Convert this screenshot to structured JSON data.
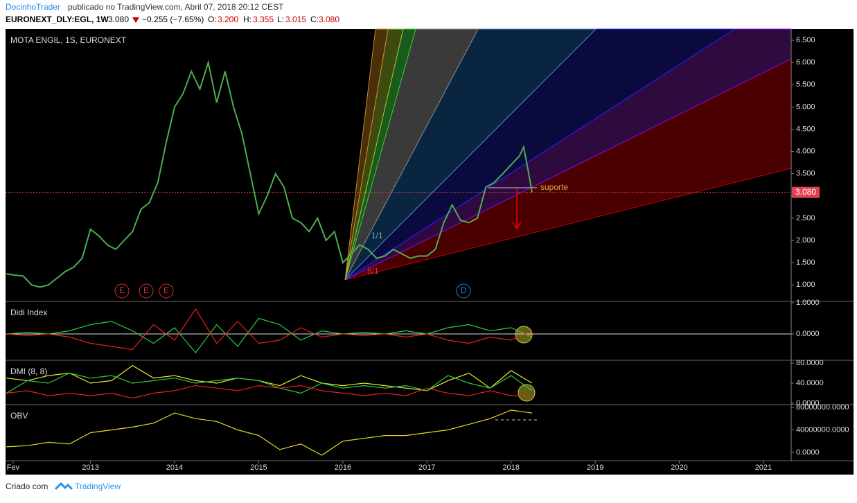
{
  "header": {
    "author": "DocinhoTrader",
    "published": "publicado no TradingView.com, Abril 07, 2018 20:12 CEST",
    "symbol": "EURONEXT_DLY:EGL, 1W",
    "last": "3.080",
    "change": "−0.255 (−7.65%)",
    "open_label": "O:",
    "open": "3.200",
    "high_label": "H:",
    "high": "3.355",
    "low_label": "L:",
    "low": "3.015",
    "close_label": "C:",
    "close": "3.080"
  },
  "footer": {
    "made_with": "Criado com",
    "brand": "TradingView"
  },
  "chart_data": [
    {
      "type": "line",
      "title": "MOTA ENGIL, 1S, EURONEXT",
      "xlim": [
        2011.99,
        2021.33
      ],
      "xticks": [
        {
          "value": 2012.08,
          "label": "Fev"
        },
        2013,
        2014,
        2015,
        2016,
        2017,
        2018,
        2019,
        2020,
        2021
      ],
      "ylim": [
        0.63,
        6.75
      ],
      "yticks": [
        {
          "value": 1,
          "label": "1.000"
        },
        {
          "value": 1.5,
          "label": "1.500"
        },
        {
          "value": 2,
          "label": "2.000"
        },
        {
          "value": 2.5,
          "label": "2.500"
        },
        {
          "value": 3,
          "label": "3.000"
        },
        {
          "value": 3.5,
          "label": "3.500"
        },
        {
          "value": 4,
          "label": "4.000"
        },
        {
          "value": 4.5,
          "label": "4.500"
        },
        {
          "value": 5,
          "label": "5.000"
        },
        {
          "value": 5.5,
          "label": "5.500"
        },
        {
          "value": 6,
          "label": "6.000"
        },
        {
          "value": 6.5,
          "label": "6.500"
        }
      ],
      "last_price": {
        "value": 3.08,
        "label": "3.080"
      },
      "annotations": [
        "suporte",
        "E",
        "E",
        "E",
        "D",
        "1/1",
        "8/1"
      ],
      "series": [
        {
          "name": "EGL",
          "color": "#4caf50",
          "x": [
            2012,
            2012.1,
            2012.2,
            2012.3,
            2012.4,
            2012.5,
            2012.6,
            2012.7,
            2012.8,
            2012.9,
            2013,
            2013.1,
            2013.2,
            2013.3,
            2013.4,
            2013.5,
            2013.6,
            2013.7,
            2013.8,
            2013.9,
            2014,
            2014.1,
            2014.2,
            2014.3,
            2014.4,
            2014.5,
            2014.6,
            2014.7,
            2014.8,
            2014.9,
            2015,
            2015.1,
            2015.2,
            2015.3,
            2015.4,
            2015.5,
            2015.6,
            2015.7,
            2015.8,
            2015.9,
            2016,
            2016.1,
            2016.2,
            2016.3,
            2016.4,
            2016.5,
            2016.6,
            2016.7,
            2016.8,
            2016.9,
            2017,
            2017.1,
            2017.2,
            2017.3,
            2017.4,
            2017.5,
            2017.6,
            2017.7,
            2017.8,
            2017.9,
            2018,
            2018.1,
            2018.15,
            2018.2,
            2018.25
          ],
          "values": [
            1.25,
            1.22,
            1.2,
            1.0,
            0.95,
            1.0,
            1.15,
            1.3,
            1.4,
            1.6,
            2.25,
            2.1,
            1.9,
            1.8,
            2.0,
            2.2,
            2.7,
            2.85,
            3.3,
            4.2,
            5.0,
            5.3,
            5.8,
            5.4,
            6.0,
            5.1,
            5.8,
            5.0,
            4.4,
            3.5,
            2.6,
            3.0,
            3.5,
            3.2,
            2.5,
            2.4,
            2.2,
            2.5,
            2.0,
            2.2,
            1.5,
            1.7,
            1.9,
            1.8,
            1.6,
            1.65,
            1.8,
            1.7,
            1.6,
            1.65,
            1.65,
            1.8,
            2.4,
            2.8,
            2.45,
            2.4,
            2.5,
            3.2,
            3.3,
            3.5,
            3.7,
            3.9,
            4.1,
            3.6,
            3.08
          ]
        }
      ]
    },
    {
      "type": "line",
      "title": "Didi Index",
      "ylim": [
        -0.844,
        1.044
      ],
      "yticks": [
        {
          "value": 0,
          "label": "0.0000"
        },
        {
          "value": 1,
          "label": "1.0000"
        }
      ],
      "series": [
        {
          "name": "Didi green",
          "color": "#2ecc40",
          "x": [
            2012,
            2012.25,
            2012.5,
            2012.75,
            2013,
            2013.25,
            2013.5,
            2013.75,
            2014,
            2014.25,
            2014.5,
            2014.75,
            2015,
            2015.25,
            2015.5,
            2015.75,
            2016,
            2016.25,
            2016.5,
            2016.75,
            2017,
            2017.25,
            2017.5,
            2017.75,
            2018,
            2018.25
          ],
          "values": [
            0,
            0.05,
            0,
            0.1,
            0.3,
            0.4,
            0.1,
            -0.3,
            0.2,
            -0.6,
            0.3,
            -0.4,
            0.5,
            0.3,
            -0.2,
            0.1,
            0,
            0.05,
            0,
            0.1,
            0,
            0.2,
            0.3,
            0.1,
            0.2,
            -0.1
          ]
        },
        {
          "name": "Didi red",
          "color": "#e82020",
          "x": [
            2012,
            2012.25,
            2012.5,
            2012.75,
            2013,
            2013.25,
            2013.5,
            2013.75,
            2014,
            2014.25,
            2014.5,
            2014.75,
            2015,
            2015.25,
            2015.5,
            2015.75,
            2016,
            2016.25,
            2016.5,
            2016.75,
            2017,
            2017.25,
            2017.5,
            2017.75,
            2018,
            2018.25
          ],
          "values": [
            0,
            -0.05,
            0,
            -0.1,
            -0.3,
            -0.4,
            -0.5,
            0.3,
            -0.2,
            0.8,
            -0.3,
            0.4,
            -0.3,
            -0.2,
            0.2,
            -0.1,
            0,
            -0.05,
            0,
            -0.1,
            0,
            -0.2,
            -0.3,
            -0.1,
            -0.2,
            0.1
          ]
        }
      ]
    },
    {
      "type": "line",
      "title": "DMI (8, 8)",
      "ylim": [
        -2.8,
        85.5
      ],
      "yticks": [
        {
          "value": 0,
          "label": "0.0000"
        },
        {
          "value": 40,
          "label": "40.0000"
        },
        {
          "value": 80,
          "label": "80.0000"
        }
      ],
      "series": [
        {
          "name": "ADX",
          "color": "#e8e82a",
          "x": [
            2012,
            2012.25,
            2012.5,
            2012.75,
            2013,
            2013.25,
            2013.5,
            2013.75,
            2014,
            2014.25,
            2014.5,
            2014.75,
            2015,
            2015.25,
            2015.5,
            2015.75,
            2016,
            2016.25,
            2016.5,
            2016.75,
            2017,
            2017.25,
            2017.5,
            2017.75,
            2018,
            2018.25
          ],
          "values": [
            50,
            45,
            55,
            60,
            40,
            45,
            75,
            50,
            55,
            45,
            40,
            50,
            45,
            35,
            55,
            40,
            35,
            40,
            35,
            30,
            25,
            45,
            60,
            30,
            65,
            40
          ]
        },
        {
          "name": "+DI",
          "color": "#2ecc40",
          "x": [
            2012,
            2012.25,
            2012.5,
            2012.75,
            2013,
            2013.25,
            2013.5,
            2013.75,
            2014,
            2014.25,
            2014.5,
            2014.75,
            2015,
            2015.25,
            2015.5,
            2015.75,
            2016,
            2016.25,
            2016.5,
            2016.75,
            2017,
            2017.25,
            2017.5,
            2017.75,
            2018,
            2018.25
          ],
          "values": [
            20,
            45,
            40,
            60,
            50,
            55,
            40,
            45,
            50,
            40,
            45,
            50,
            45,
            30,
            20,
            40,
            30,
            35,
            30,
            35,
            25,
            55,
            40,
            30,
            55,
            25
          ]
        },
        {
          "name": "-DI",
          "color": "#e82020",
          "x": [
            2012,
            2012.25,
            2012.5,
            2012.75,
            2013,
            2013.25,
            2013.5,
            2013.75,
            2014,
            2014.25,
            2014.5,
            2014.75,
            2015,
            2015.25,
            2015.5,
            2015.75,
            2016,
            2016.25,
            2016.5,
            2016.75,
            2017,
            2017.25,
            2017.5,
            2017.75,
            2018,
            2018.25
          ],
          "values": [
            20,
            25,
            15,
            20,
            15,
            20,
            10,
            20,
            25,
            35,
            30,
            25,
            35,
            30,
            35,
            25,
            20,
            15,
            20,
            15,
            30,
            20,
            15,
            25,
            15,
            15
          ]
        }
      ]
    },
    {
      "type": "line",
      "title": "OBV",
      "ylim": [
        -14800000,
        84900000
      ],
      "yticks": [
        {
          "value": 0,
          "label": "0.0000"
        },
        {
          "value": 40000000,
          "label": "40000000.0000"
        },
        {
          "value": 80000000,
          "label": "80000000.0000"
        }
      ],
      "series": [
        {
          "name": "OBV",
          "color": "#e8d82a",
          "x": [
            2012,
            2012.25,
            2012.5,
            2012.75,
            2013,
            2013.25,
            2013.5,
            2013.75,
            2014,
            2014.25,
            2014.5,
            2014.75,
            2015,
            2015.25,
            2015.5,
            2015.75,
            2016,
            2016.25,
            2016.5,
            2016.75,
            2017,
            2017.25,
            2017.5,
            2017.75,
            2018,
            2018.25
          ],
          "values": [
            10000000,
            12000000,
            18000000,
            15000000,
            35000000,
            40000000,
            45000000,
            52000000,
            70000000,
            60000000,
            55000000,
            40000000,
            30000000,
            5000000,
            15000000,
            -5000000,
            20000000,
            25000000,
            30000000,
            30000000,
            35000000,
            40000000,
            50000000,
            60000000,
            75000000,
            70000000
          ]
        }
      ]
    }
  ]
}
